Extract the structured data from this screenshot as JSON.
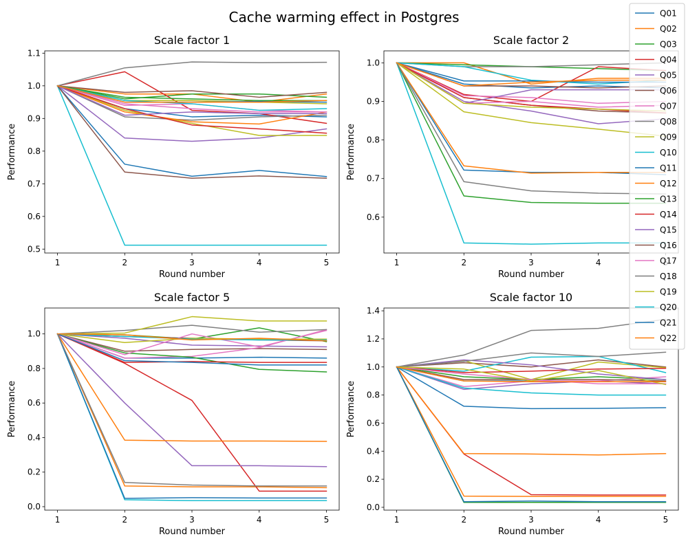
{
  "figure": {
    "title": "Cache warming effect in Postgres"
  },
  "legend": {
    "entries": [
      "Q01",
      "Q02",
      "Q03",
      "Q04",
      "Q05",
      "Q06",
      "Q07",
      "Q08",
      "Q09",
      "Q10",
      "Q11",
      "Q12",
      "Q13",
      "Q14",
      "Q15",
      "Q16",
      "Q17",
      "Q18",
      "Q19",
      "Q20",
      "Q21",
      "Q22"
    ]
  },
  "colors": {
    "Q01": "#1f77b4",
    "Q02": "#ff7f0e",
    "Q03": "#2ca02c",
    "Q04": "#d62728",
    "Q05": "#9467bd",
    "Q06": "#8c564b",
    "Q07": "#e377c2",
    "Q08": "#7f7f7f",
    "Q09": "#bcbd22",
    "Q10": "#17becf",
    "Q11": "#1f77b4",
    "Q12": "#ff7f0e",
    "Q13": "#2ca02c",
    "Q14": "#d62728",
    "Q15": "#9467bd",
    "Q16": "#8c564b",
    "Q17": "#e377c2",
    "Q18": "#7f7f7f",
    "Q19": "#bcbd22",
    "Q20": "#17becf",
    "Q21": "#1f77b4",
    "Q22": "#ff7f0e"
  },
  "chart_data": [
    {
      "type": "line",
      "title": "Scale factor 1",
      "xlabel": "Round number",
      "ylabel": "Performance",
      "x": [
        1,
        2,
        3,
        4,
        5
      ],
      "xticks": [
        1,
        2,
        3,
        4,
        5
      ],
      "xlim": [
        0.81,
        5.19
      ],
      "ylim": [
        0.488,
        1.107
      ],
      "yticks": [
        0.5,
        0.6,
        0.7,
        0.8,
        0.9,
        1.0,
        1.1
      ],
      "ytick_labels": [
        "0.5",
        "0.6",
        "0.7",
        "0.8",
        "0.9",
        "1.0",
        "1.1"
      ],
      "grid": false,
      "series": [
        {
          "name": "Q01",
          "values": [
            1.0,
            0.93,
            0.905,
            0.91,
            0.905
          ]
        },
        {
          "name": "Q02",
          "values": [
            1.0,
            0.975,
            0.975,
            0.95,
            0.975
          ]
        },
        {
          "name": "Q03",
          "values": [
            1.0,
            0.96,
            0.975,
            0.975,
            0.965
          ]
        },
        {
          "name": "Q04",
          "values": [
            1.0,
            1.043,
            0.925,
            0.915,
            0.885
          ]
        },
        {
          "name": "Q05",
          "values": [
            1.0,
            0.84,
            0.83,
            0.84,
            0.868
          ]
        },
        {
          "name": "Q06",
          "values": [
            1.0,
            0.98,
            0.985,
            0.965,
            0.98
          ]
        },
        {
          "name": "Q07",
          "values": [
            1.0,
            0.94,
            0.945,
            0.925,
            0.92
          ]
        },
        {
          "name": "Q08",
          "values": [
            1.0,
            0.905,
            0.895,
            0.905,
            0.91
          ]
        },
        {
          "name": "Q09",
          "values": [
            1.0,
            0.925,
            0.885,
            0.848,
            0.848
          ]
        },
        {
          "name": "Q10",
          "values": [
            1.0,
            0.512,
            0.512,
            0.512,
            0.512
          ]
        },
        {
          "name": "Q11",
          "values": [
            1.0,
            0.76,
            0.723,
            0.741,
            0.722
          ]
        },
        {
          "name": "Q12",
          "values": [
            1.0,
            0.92,
            0.89,
            0.883,
            0.92
          ]
        },
        {
          "name": "Q13",
          "values": [
            1.0,
            0.965,
            0.96,
            0.955,
            0.955
          ]
        },
        {
          "name": "Q14",
          "values": [
            1.0,
            0.93,
            0.88,
            0.868,
            0.855
          ]
        },
        {
          "name": "Q15",
          "values": [
            1.0,
            0.91,
            0.92,
            0.915,
            0.915
          ]
        },
        {
          "name": "Q16",
          "values": [
            1.0,
            0.736,
            0.717,
            0.724,
            0.717
          ]
        },
        {
          "name": "Q17",
          "values": [
            1.0,
            0.945,
            0.93,
            0.92,
            0.92
          ]
        },
        {
          "name": "Q18",
          "values": [
            1.0,
            1.055,
            1.073,
            1.071,
            1.072
          ]
        },
        {
          "name": "Q19",
          "values": [
            1.0,
            0.955,
            0.955,
            0.95,
            0.945
          ]
        },
        {
          "name": "Q20",
          "values": [
            1.0,
            0.955,
            0.945,
            0.925,
            0.93
          ]
        },
        {
          "name": "Q21",
          "values": [
            1.0,
            0.95,
            0.95,
            0.952,
            0.95
          ]
        },
        {
          "name": "Q22",
          "values": [
            1.0,
            0.95,
            0.95,
            0.95,
            0.955
          ]
        }
      ]
    },
    {
      "type": "line",
      "title": "Scale factor 2",
      "xlabel": "Round number",
      "ylabel": "Performance",
      "x": [
        1,
        2,
        3,
        4,
        5
      ],
      "xticks": [
        1,
        2,
        3,
        4,
        5
      ],
      "xlim": [
        0.81,
        5.19
      ],
      "ylim": [
        0.507,
        1.031
      ],
      "yticks": [
        0.6,
        0.7,
        0.8,
        0.9,
        1.0
      ],
      "ytick_labels": [
        "0.6",
        "0.7",
        "0.8",
        "0.9",
        "1.0"
      ],
      "grid": false,
      "series": [
        {
          "name": "Q01",
          "values": [
            1.0,
            0.945,
            0.935,
            0.94,
            0.935
          ]
        },
        {
          "name": "Q02",
          "values": [
            1.0,
            1.0,
            0.945,
            0.96,
            0.96
          ]
        },
        {
          "name": "Q03",
          "values": [
            1.0,
            0.995,
            0.99,
            0.985,
            0.98
          ]
        },
        {
          "name": "Q04",
          "values": [
            1.0,
            0.918,
            0.9,
            0.99,
            0.98
          ]
        },
        {
          "name": "Q05",
          "values": [
            1.0,
            0.9,
            0.875,
            0.842,
            0.855
          ]
        },
        {
          "name": "Q06",
          "values": [
            1.0,
            0.91,
            0.89,
            0.875,
            0.87
          ]
        },
        {
          "name": "Q07",
          "values": [
            1.0,
            0.915,
            0.91,
            0.895,
            0.9
          ]
        },
        {
          "name": "Q08",
          "values": [
            1.0,
            0.99,
            0.99,
            0.995,
            1.0
          ]
        },
        {
          "name": "Q09",
          "values": [
            1.0,
            0.873,
            0.845,
            0.828,
            0.81
          ]
        },
        {
          "name": "Q10",
          "values": [
            1.0,
            0.533,
            0.53,
            0.533,
            0.533
          ]
        },
        {
          "name": "Q11",
          "values": [
            1.0,
            0.722,
            0.716,
            0.716,
            0.71
          ]
        },
        {
          "name": "Q12",
          "values": [
            1.0,
            0.733,
            0.714,
            0.716,
            0.716
          ]
        },
        {
          "name": "Q13",
          "values": [
            1.0,
            0.655,
            0.638,
            0.636,
            0.636
          ]
        },
        {
          "name": "Q14",
          "values": [
            1.0,
            0.91,
            0.89,
            0.88,
            0.87
          ]
        },
        {
          "name": "Q15",
          "values": [
            1.0,
            0.895,
            0.93,
            0.93,
            0.93
          ]
        },
        {
          "name": "Q16",
          "values": [
            1.0,
            0.94,
            0.94,
            0.935,
            0.94
          ]
        },
        {
          "name": "Q17",
          "values": [
            1.0,
            0.895,
            0.9,
            0.885,
            0.89
          ]
        },
        {
          "name": "Q18",
          "values": [
            1.0,
            0.692,
            0.668,
            0.662,
            0.66
          ]
        },
        {
          "name": "Q19",
          "values": [
            1.0,
            0.895,
            0.885,
            0.88,
            0.875
          ]
        },
        {
          "name": "Q20",
          "values": [
            1.0,
            0.99,
            0.955,
            0.945,
            0.955
          ]
        },
        {
          "name": "Q21",
          "values": [
            1.0,
            0.953,
            0.953,
            0.95,
            0.95
          ]
        },
        {
          "name": "Q22",
          "values": [
            1.0,
            0.94,
            0.95,
            0.955,
            0.955
          ]
        }
      ]
    },
    {
      "type": "line",
      "title": "Scale factor 5",
      "xlabel": "Round number",
      "ylabel": "Performance",
      "x": [
        1,
        2,
        3,
        4,
        5
      ],
      "xticks": [
        1,
        2,
        3,
        4,
        5
      ],
      "xlim": [
        0.81,
        5.19
      ],
      "ylim": [
        -0.02,
        1.15
      ],
      "yticks": [
        0.0,
        0.2,
        0.4,
        0.6,
        0.8,
        1.0
      ],
      "ytick_labels": [
        "0.0",
        "0.2",
        "0.4",
        "0.6",
        "0.8",
        "1.0"
      ],
      "grid": false,
      "series": [
        {
          "name": "Q01",
          "values": [
            1.0,
            0.86,
            0.86,
            0.865,
            0.86
          ]
        },
        {
          "name": "Q02",
          "values": [
            1.0,
            0.12,
            0.115,
            0.115,
            0.11
          ]
        },
        {
          "name": "Q03",
          "values": [
            1.0,
            0.995,
            0.97,
            1.035,
            0.955
          ]
        },
        {
          "name": "Q04",
          "values": [
            1.0,
            0.83,
            0.615,
            0.09,
            0.09
          ]
        },
        {
          "name": "Q05",
          "values": [
            1.0,
            0.6,
            0.237,
            0.237,
            0.232
          ]
        },
        {
          "name": "Q06",
          "values": [
            1.0,
            0.9,
            0.91,
            0.915,
            0.91
          ]
        },
        {
          "name": "Q07",
          "values": [
            1.0,
            0.86,
            0.87,
            0.92,
            1.025
          ]
        },
        {
          "name": "Q08",
          "values": [
            1.0,
            1.02,
            1.05,
            1.01,
            1.025
          ]
        },
        {
          "name": "Q09",
          "values": [
            1.0,
            1.005,
            1.1,
            1.075,
            1.075
          ]
        },
        {
          "name": "Q10",
          "values": [
            1.0,
            0.04,
            0.035,
            0.035,
            0.035
          ]
        },
        {
          "name": "Q11",
          "values": [
            1.0,
            0.048,
            0.052,
            0.05,
            0.05
          ]
        },
        {
          "name": "Q12",
          "values": [
            1.0,
            0.385,
            0.38,
            0.38,
            0.378
          ]
        },
        {
          "name": "Q13",
          "values": [
            1.0,
            0.89,
            0.865,
            0.795,
            0.78
          ]
        },
        {
          "name": "Q14",
          "values": [
            1.0,
            0.835,
            0.84,
            0.835,
            0.835
          ]
        },
        {
          "name": "Q15",
          "values": [
            1.0,
            0.975,
            0.935,
            0.93,
            0.925
          ]
        },
        {
          "name": "Q16",
          "values": [
            1.0,
            0.985,
            0.975,
            0.965,
            0.96
          ]
        },
        {
          "name": "Q17",
          "values": [
            1.0,
            0.88,
            1.0,
            0.925,
            1.02
          ]
        },
        {
          "name": "Q18",
          "values": [
            1.0,
            0.14,
            0.125,
            0.12,
            0.12
          ]
        },
        {
          "name": "Q19",
          "values": [
            1.0,
            0.95,
            0.975,
            0.97,
            0.97
          ]
        },
        {
          "name": "Q20",
          "values": [
            1.0,
            0.985,
            0.97,
            0.965,
            0.965
          ]
        },
        {
          "name": "Q21",
          "values": [
            1.0,
            0.845,
            0.835,
            0.82,
            0.82
          ]
        },
        {
          "name": "Q22",
          "values": [
            1.0,
            0.995,
            0.965,
            0.975,
            0.96
          ]
        }
      ]
    },
    {
      "type": "line",
      "title": "Scale factor 10",
      "xlabel": "Round number",
      "ylabel": "Performance",
      "x": [
        1,
        2,
        3,
        4,
        5
      ],
      "xticks": [
        1,
        2,
        3,
        4,
        5
      ],
      "xlim": [
        0.81,
        5.19
      ],
      "ylim": [
        -0.02,
        1.42
      ],
      "yticks": [
        0.0,
        0.2,
        0.4,
        0.6,
        0.8,
        1.0,
        1.2,
        1.4
      ],
      "ytick_labels": [
        "0.0",
        "0.2",
        "0.4",
        "0.6",
        "0.8",
        "1.0",
        "1.2",
        "1.4"
      ],
      "grid": false,
      "series": [
        {
          "name": "Q01",
          "values": [
            1.0,
            0.9,
            0.9,
            0.895,
            0.895
          ]
        },
        {
          "name": "Q02",
          "values": [
            1.0,
            0.08,
            0.078,
            0.078,
            0.078
          ]
        },
        {
          "name": "Q03",
          "values": [
            1.0,
            0.93,
            0.91,
            0.93,
            0.91
          ]
        },
        {
          "name": "Q04",
          "values": [
            1.0,
            0.38,
            0.09,
            0.088,
            0.088
          ]
        },
        {
          "name": "Q05",
          "values": [
            1.0,
            0.84,
            0.88,
            0.9,
            0.88
          ]
        },
        {
          "name": "Q06",
          "values": [
            1.0,
            1.03,
            1.0,
            1.05,
            1.0
          ]
        },
        {
          "name": "Q07",
          "values": [
            1.0,
            0.86,
            0.9,
            0.9,
            0.93
          ]
        },
        {
          "name": "Q08",
          "values": [
            1.0,
            1.085,
            1.26,
            1.275,
            1.34
          ]
        },
        {
          "name": "Q09",
          "values": [
            1.0,
            1.045,
            0.91,
            1.035,
            0.995
          ]
        },
        {
          "name": "Q10",
          "values": [
            1.0,
            0.97,
            1.07,
            1.075,
            0.96
          ]
        },
        {
          "name": "Q11",
          "values": [
            1.0,
            0.72,
            0.703,
            0.705,
            0.71
          ]
        },
        {
          "name": "Q12",
          "values": [
            1.0,
            0.383,
            0.38,
            0.373,
            0.383
          ]
        },
        {
          "name": "Q13",
          "values": [
            1.0,
            0.035,
            0.035,
            0.035,
            0.035
          ]
        },
        {
          "name": "Q14",
          "values": [
            1.0,
            0.96,
            0.97,
            0.985,
            0.99
          ]
        },
        {
          "name": "Q15",
          "values": [
            1.0,
            1.05,
            1.015,
            0.95,
            0.91
          ]
        },
        {
          "name": "Q16",
          "values": [
            1.0,
            0.91,
            0.91,
            0.91,
            0.9
          ]
        },
        {
          "name": "Q17",
          "values": [
            1.0,
            0.95,
            0.91,
            0.88,
            0.88
          ]
        },
        {
          "name": "Q18",
          "values": [
            1.0,
            1.04,
            1.1,
            1.075,
            1.105
          ]
        },
        {
          "name": "Q19",
          "values": [
            1.0,
            0.985,
            0.9,
            0.975,
            0.875
          ]
        },
        {
          "name": "Q20",
          "values": [
            1.0,
            0.85,
            0.815,
            0.8,
            0.8
          ]
        },
        {
          "name": "Q21",
          "values": [
            1.0,
            0.04,
            0.045,
            0.04,
            0.04
          ]
        },
        {
          "name": "Q22",
          "values": [
            1.0,
            0.9,
            0.895,
            0.895,
            0.895
          ]
        }
      ]
    }
  ]
}
